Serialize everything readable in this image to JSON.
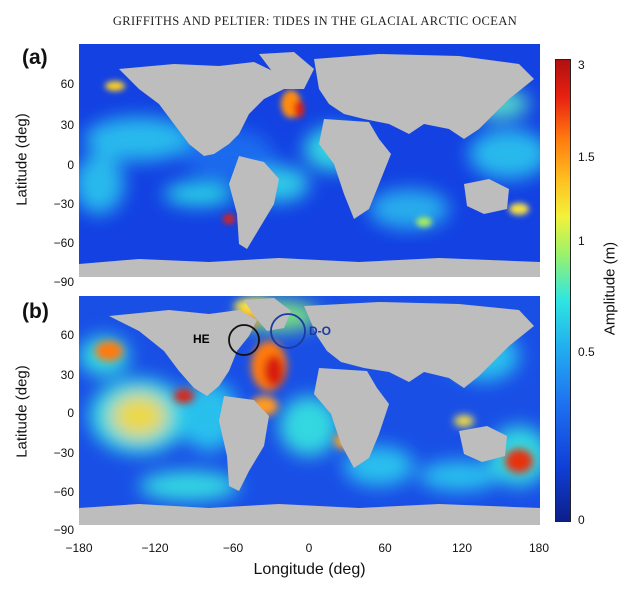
{
  "header": "GRIFFITHS AND PELTIER: TIDES IN THE GLACIAL ARCTIC OCEAN",
  "panels": [
    {
      "label": "(a)",
      "ylabel": "Latitude (deg)"
    },
    {
      "label": "(b)",
      "ylabel": "Latitude (deg)",
      "annotations": [
        {
          "text": "HE",
          "color": "#111111"
        },
        {
          "text": "D-O",
          "color": "#1a3aa0"
        }
      ]
    }
  ],
  "axes": {
    "y_ticks": [
      "60",
      "30",
      "0",
      "−30",
      "−60",
      "−90"
    ],
    "x_ticks": [
      "−180",
      "−120",
      "−60",
      "0",
      "60",
      "120",
      "180"
    ],
    "xlabel": "Longitude (deg)"
  },
  "colorbar": {
    "title": "Amplitude (m)",
    "ticks": [
      "3",
      "1.5",
      "1",
      "0.5",
      "0"
    ],
    "colors": [
      "#0c1f8a",
      "#1e6ff0",
      "#2fe6e0",
      "#f2f23a",
      "#ff7a10",
      "#b01010"
    ]
  },
  "chart_data": [
    {
      "type": "heatmap",
      "title": "(a)",
      "xlabel": "",
      "ylabel": "Latitude (deg)",
      "xlim": [
        -180,
        180
      ],
      "ylim": [
        -90,
        90
      ],
      "color_scale": [
        0,
        3
      ]
    },
    {
      "type": "heatmap",
      "title": "(b)",
      "xlabel": "Longitude (deg)",
      "ylabel": "Latitude (deg)",
      "xlim": [
        -180,
        180
      ],
      "ylim": [
        -90,
        90
      ],
      "color_scale": [
        0,
        3
      ]
    }
  ]
}
